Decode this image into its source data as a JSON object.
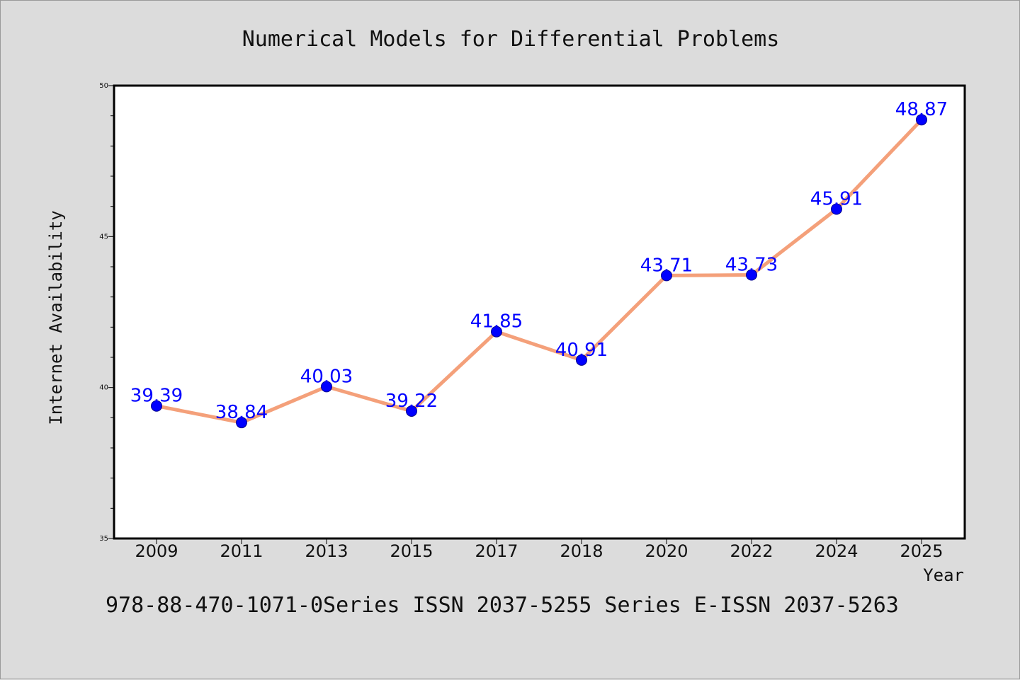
{
  "chart_data": {
    "type": "line",
    "title": "Numerical Models for Differential Problems",
    "xlabel": "Year",
    "ylabel": "Internet Availability",
    "categories": [
      "2009",
      "2011",
      "2013",
      "2015",
      "2017",
      "2018",
      "2020",
      "2022",
      "2024",
      "2025"
    ],
    "series": [
      {
        "values": [
          39.39,
          38.84,
          40.03,
          39.22,
          41.85,
          40.91,
          43.71,
          43.73,
          45.91,
          48.87
        ]
      }
    ],
    "data_labels": [
      "39.39",
      "38.84",
      "40.03",
      "39.22",
      "41.85",
      "40.91",
      "43.71",
      "43.73",
      "45.91",
      "48.87"
    ],
    "ylim": [
      35,
      50
    ],
    "yticks": [
      "35",
      "40",
      "45",
      "50"
    ],
    "grid": false,
    "line_color": "#f4a07a",
    "marker_color": "#0000ff",
    "label_color": "#0000ff"
  },
  "footer": "978-88-470-1071-0Series ISSN 2037-5255 Series E-ISSN 2037-5263"
}
